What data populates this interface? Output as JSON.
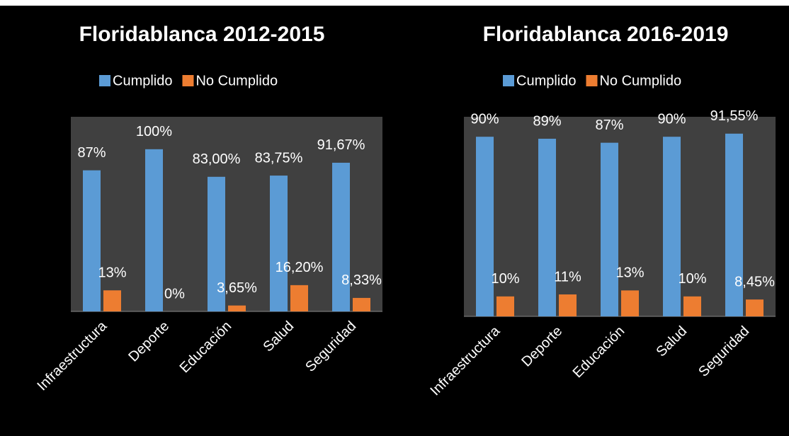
{
  "chart_data": [
    {
      "type": "bar",
      "title": "Floridablanca 2012-2015",
      "categories": [
        "Infraestructura",
        "Deporte",
        "Educación",
        "Salud",
        "Seguridad"
      ],
      "series": [
        {
          "name": "Cumplido",
          "color": "#5b9bd5",
          "values": [
            87,
            100,
            83.0,
            83.75,
            91.67
          ],
          "value_labels": [
            "87%",
            "100%",
            "83,00%",
            "83,75%",
            "91,67%"
          ]
        },
        {
          "name": "No Cumplido",
          "color": "#ed7d31",
          "values": [
            13,
            0,
            3.65,
            16.2,
            8.33
          ],
          "value_labels": [
            "13%",
            "0%",
            "3,65%",
            "16,20%",
            "8,33%"
          ]
        }
      ],
      "ylim": [
        0,
        120
      ],
      "legend": "top"
    },
    {
      "type": "bar",
      "title": "Floridablanca 2016-2019",
      "categories": [
        "Infraestructura",
        "Deporte",
        "Educación",
        "Salud",
        "Seguridad"
      ],
      "series": [
        {
          "name": "Cumplido",
          "color": "#5b9bd5",
          "values": [
            90,
            89,
            87,
            90,
            91.55
          ],
          "value_labels": [
            "90%",
            "89%",
            "87%",
            "90%",
            "91,55%"
          ]
        },
        {
          "name": "No Cumplido",
          "color": "#ed7d31",
          "values": [
            10,
            11,
            13,
            10,
            8.45
          ],
          "value_labels": [
            "10%",
            "11%",
            "13%",
            "10%",
            "8,45%"
          ]
        }
      ],
      "ylim": [
        0,
        100
      ],
      "legend": "top"
    }
  ]
}
